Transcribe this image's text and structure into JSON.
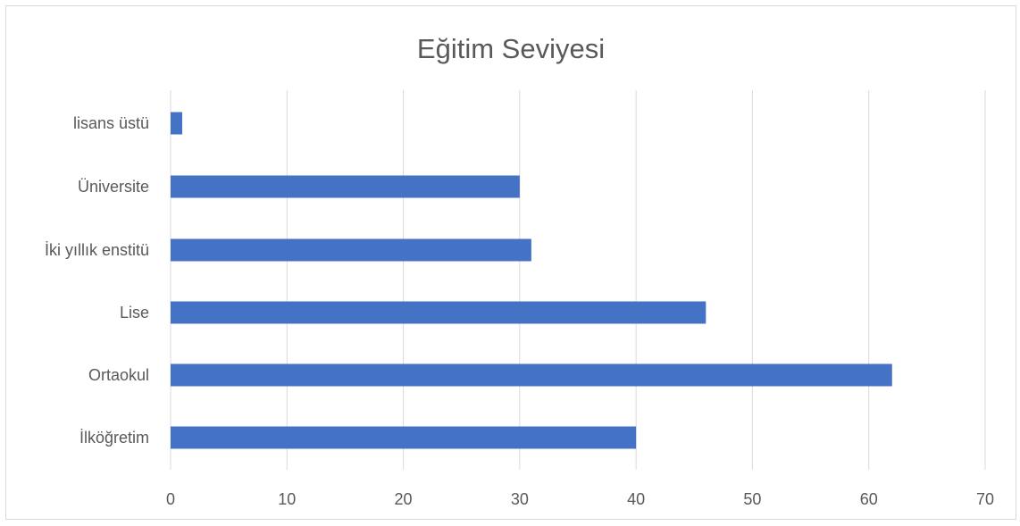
{
  "chart_data": {
    "type": "bar",
    "orientation": "horizontal",
    "title": "Eğitim Seviyesi",
    "categories": [
      "İlköğretim",
      "Ortaokul",
      "Lise",
      "İki yıllık enstitü",
      "Üniversite",
      "lisans üstü"
    ],
    "values": [
      40,
      62,
      46,
      31,
      30,
      1
    ],
    "xlim": [
      0,
      70
    ],
    "xticks": [
      0,
      10,
      20,
      30,
      40,
      50,
      60,
      70
    ],
    "grid": true,
    "bar_color": "#4472C4",
    "grid_color": "#d9d9d9"
  }
}
